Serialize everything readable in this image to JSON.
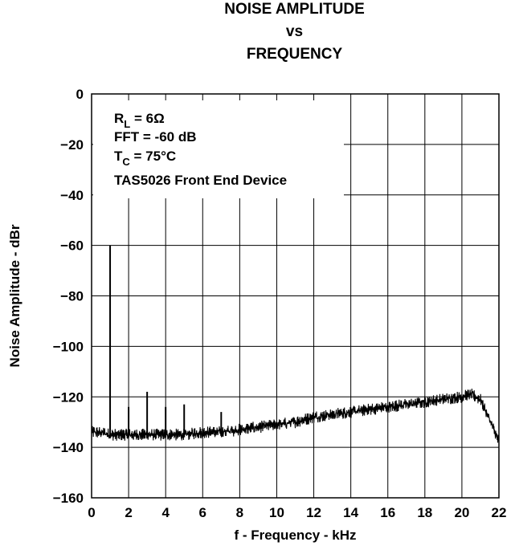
{
  "chart_data": {
    "type": "line",
    "title": [
      "NOISE AMPLITUDE",
      "vs",
      "FREQUENCY"
    ],
    "xlabel": "f - Frequency - kHz",
    "ylabel": "Noise Amplitude - dBr",
    "xlim": [
      0,
      22
    ],
    "ylim": [
      -160,
      0
    ],
    "x_ticks": [
      "0",
      "2",
      "4",
      "6",
      "8",
      "10",
      "12",
      "14",
      "16",
      "18",
      "20",
      "22"
    ],
    "y_ticks": [
      "0",
      "−20",
      "−40",
      "−60",
      "−80",
      "−100",
      "−120",
      "−140",
      "−160"
    ],
    "grid": true,
    "annotations": {
      "rl_main": "R",
      "rl_sub": "L",
      "rl_rest": " = 6Ω",
      "fft": "FFT = -60 dB",
      "tc_main": "T",
      "tc_sub": "C",
      "tc_rest": " = 75°C",
      "device": "TAS5026 Front End Device"
    },
    "series": [
      {
        "x": [
          0,
          0.5,
          1,
          2,
          3,
          4,
          5,
          6,
          7,
          8,
          9,
          10,
          11,
          12,
          13,
          14,
          15,
          16,
          17,
          18,
          19,
          20,
          20.5,
          21,
          21.5,
          22
        ],
        "values": [
          -134,
          -134,
          -135,
          -135,
          -135,
          -135,
          -135,
          -134,
          -134,
          -133,
          -132,
          -131,
          -130,
          -128,
          -127,
          -126,
          -125,
          -124,
          -123,
          -122,
          -121,
          -120,
          -119,
          -121,
          -129,
          -138
        ]
      }
    ],
    "harmonic_spikes": [
      {
        "x": 1,
        "y": -60
      },
      {
        "x": 2,
        "y": -124
      },
      {
        "x": 3,
        "y": -118
      },
      {
        "x": 4,
        "y": -124
      },
      {
        "x": 5,
        "y": -123
      },
      {
        "x": 7,
        "y": -126
      }
    ]
  }
}
